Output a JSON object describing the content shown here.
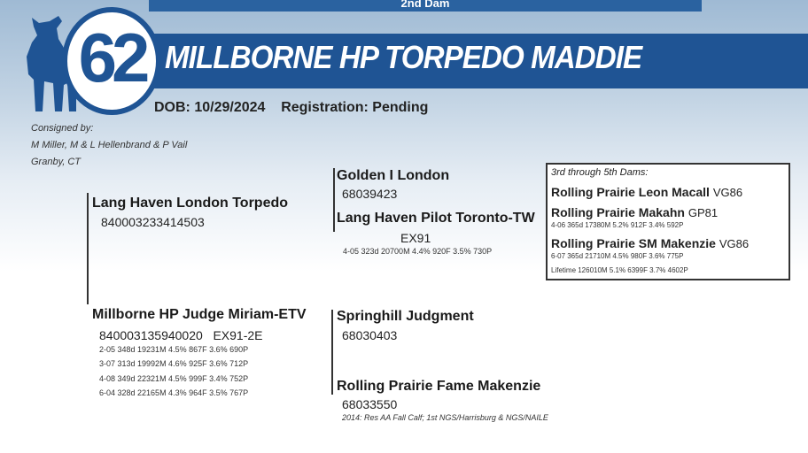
{
  "header": {
    "top_bar": "2nd Dam",
    "lot_number": "62",
    "title": "MILLBORNE HP TORPEDO MADDIE",
    "dob": "DOB: 10/29/2024",
    "registration": "Registration: Pending",
    "brand_color": "#1f5494",
    "icon": "cow-silhouette-icon"
  },
  "consignor": {
    "label": "Consigned by:",
    "names": "M Miller, M & L Hellenbrand & P Vail",
    "location": "Granby, CT"
  },
  "sire": {
    "name": "Lang Haven London Torpedo",
    "reg": "840003233414503"
  },
  "sire_sire": {
    "name": "Golden I London",
    "reg": "68039423"
  },
  "sire_dam": {
    "name": "Lang Haven Pilot Toronto-TW",
    "score": "EX91",
    "record": "4-05 323d 20700M 4.4% 920F 3.5% 730P"
  },
  "dam": {
    "name": "Millborne HP Judge Miriam-ETV",
    "reg": "840003135940020   EX91-2E",
    "records": [
      "2-05 348d 19231M 4.5% 867F 3.6% 690P",
      "3-07 313d 19992M 4.6% 925F 3.6% 712P",
      "4-08 349d 22321M 4.5% 999F 3.4% 752P",
      "6-04 328d 22165M 4.3% 964F 3.5% 767P"
    ]
  },
  "dam_sire": {
    "name": "Springhill Judgment",
    "reg": "68030403"
  },
  "dam_dam": {
    "name": "Rolling Prairie Fame Makenzie",
    "reg": "68033550",
    "note": "2014: Res AA Fall Calf; 1st NGS/Harrisburg & NGS/NAILE"
  },
  "dams_box": {
    "label": "3rd through 5th Dams:",
    "dams": [
      {
        "name": "Rolling Prairie Leon Macall",
        "score": "VG86",
        "records": []
      },
      {
        "name": "Rolling Prairie Makahn",
        "score": "GP81",
        "records": [
          "4-06 365d 17380M 5.2% 912F 3.4% 592P"
        ]
      },
      {
        "name": "Rolling Prairie SM Makenzie",
        "score": "VG86",
        "records": [
          "6-07 365d 21710M 4.5% 980F 3.6% 775P",
          "Lifetime 126010M 5.1% 6399F 3.7% 4602P"
        ]
      }
    ]
  }
}
